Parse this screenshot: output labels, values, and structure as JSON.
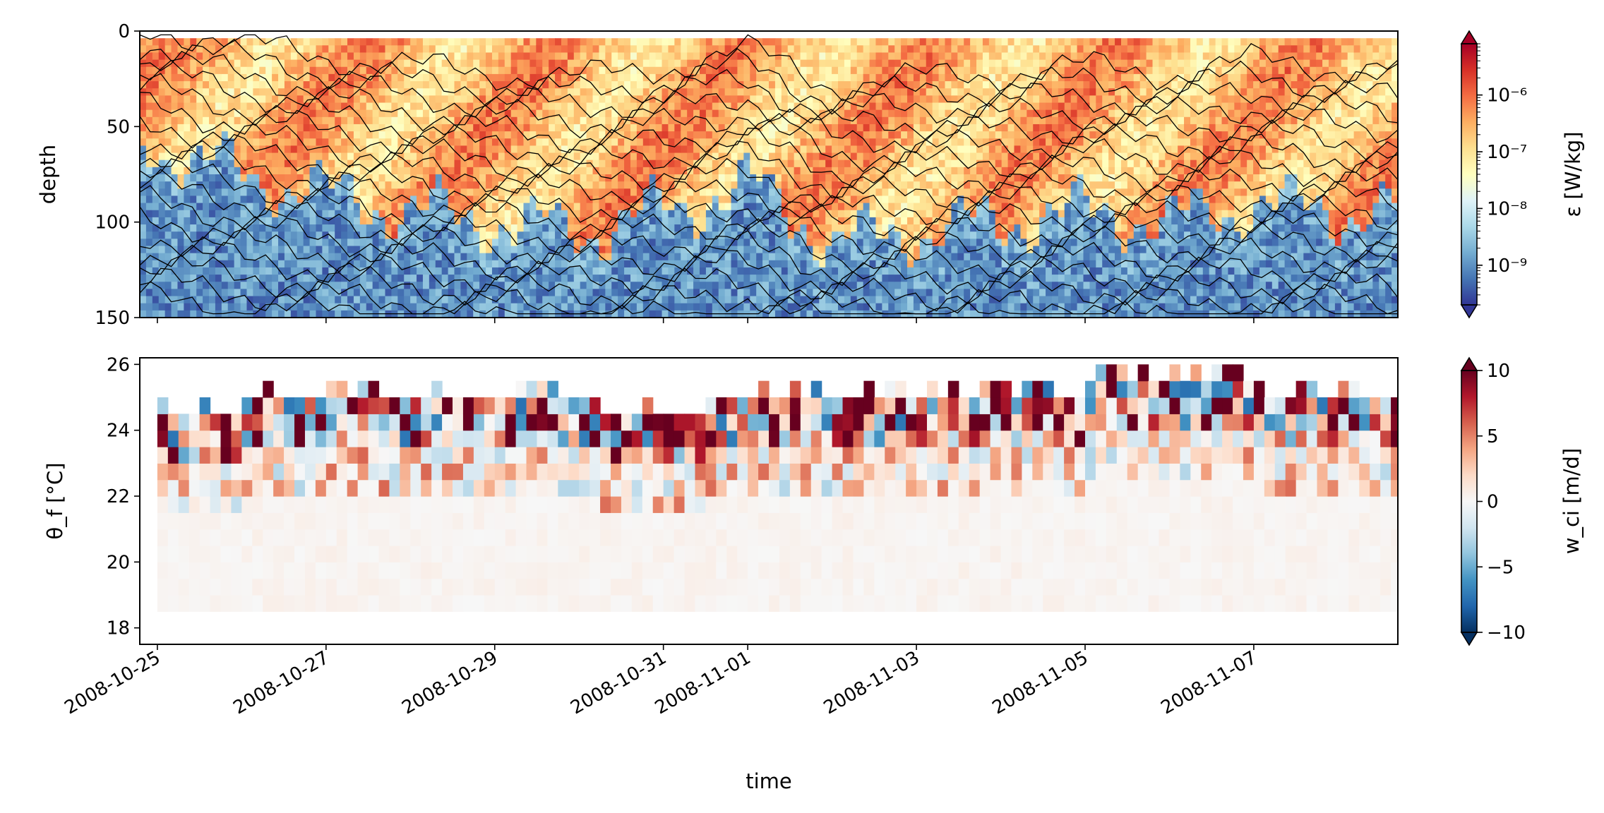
{
  "chart_data": [
    {
      "type": "heatmap",
      "panel": "top",
      "ylabel": "depth",
      "ylim": [
        150,
        0
      ],
      "yticks": [
        0,
        50,
        100,
        150
      ],
      "xaxis": {
        "type": "date",
        "range": [
          "2008-10-24T19:00",
          "2008-11-08T17:00"
        ],
        "ticks": [
          "2008-10-25",
          "2008-10-27",
          "2008-10-29",
          "2008-10-31",
          "2008-11-01",
          "2008-11-03",
          "2008-11-05",
          "2008-11-07"
        ],
        "tick_labels_shown": false
      },
      "colormap": "RdYlBu_r",
      "colorscale": "log",
      "colorbar": {
        "label": "ε [W/kg]",
        "range": [
          2e-10,
          8e-06
        ],
        "ticks": [
          1e-09,
          1e-08,
          1e-07,
          1e-06
        ],
        "tick_labels": [
          "10⁻⁹",
          "10⁻⁸",
          "10⁻⁷",
          "10⁻⁶"
        ],
        "extend": "both"
      },
      "description_of_field": {
        "mixed_layer_depth_approx": [
          [
            "2008-10-25",
            60
          ],
          [
            "2008-10-26",
            75
          ],
          [
            "2008-10-27",
            85
          ],
          [
            "2008-10-28",
            95
          ],
          [
            "2008-10-29",
            100
          ],
          [
            "2008-10-30",
            105
          ],
          [
            "2008-10-31",
            95
          ],
          [
            "2008-11-01",
            80
          ],
          [
            "2008-11-02",
            110
          ],
          [
            "2008-11-03",
            105
          ],
          [
            "2008-11-04",
            100
          ],
          [
            "2008-11-05",
            95
          ],
          [
            "2008-11-06",
            100
          ],
          [
            "2008-11-07",
            90
          ],
          [
            "2008-11-08",
            95
          ]
        ],
        "overlay": "isopycnal contours (black lines)"
      }
    },
    {
      "type": "heatmap",
      "panel": "bottom",
      "xlabel": "time",
      "ylabel": "θ_f [°C]",
      "ylim": [
        17.5,
        26.2
      ],
      "yticks": [
        18,
        20,
        22,
        24,
        26
      ],
      "xaxis": {
        "type": "date",
        "range": [
          "2008-10-24T19:00",
          "2008-11-08T17:00"
        ],
        "ticks": [
          "2008-10-25",
          "2008-10-27",
          "2008-10-29",
          "2008-10-31",
          "2008-11-01",
          "2008-11-03",
          "2008-11-05",
          "2008-11-07"
        ],
        "tick_labels": [
          "2008-10-25",
          "2008-10-27",
          "2008-10-29",
          "2008-10-31",
          "2008-11-01",
          "2008-11-03",
          "2008-11-05",
          "2008-11-07"
        ]
      },
      "colormap": "RdBu_r",
      "colorscale": "linear",
      "colorbar": {
        "label": "w_ci [m/d]",
        "range": [
          -10,
          10
        ],
        "ticks": [
          -10,
          -5,
          0,
          5,
          10
        ],
        "tick_labels": [
          "−10",
          "−5",
          "0",
          "5",
          "10"
        ],
        "extend": "both"
      },
      "bins": {
        "theta_f_bin_width": 0.5,
        "theta_f_min": 18.5,
        "time_bin_hours": 3
      },
      "surface_bin_temperature_approx": [
        [
          "2008-10-25",
          24.5
        ],
        [
          "2008-10-27",
          25.0
        ],
        [
          "2008-10-29",
          25.0
        ],
        [
          "2008-10-31",
          24.5
        ],
        [
          "2008-11-02",
          25.0
        ],
        [
          "2008-11-04",
          25.0
        ],
        [
          "2008-11-06",
          25.5
        ],
        [
          "2008-11-08",
          25.0
        ]
      ]
    }
  ]
}
